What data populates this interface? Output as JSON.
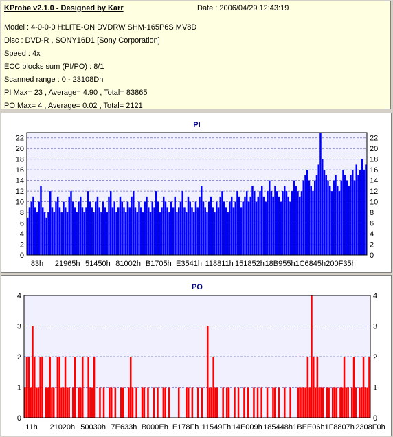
{
  "header": {
    "title": "KProbe v2.1.0 - Designed by Karr",
    "date": "Date : 2006/04/29 12:43:19",
    "model": "Model : 4-0-0-0 H:LITE-ON DVDRW SHM-165P6S MV8D",
    "disc": "Disc : DVD-R , SONY16D1 [Sony Corporation]",
    "speed": "Speed : 4x",
    "ecc": "ECC blocks sum (PI/PO) : 8/1",
    "range": "Scanned range : 0 - 23108Dh",
    "pi_stats": "PI Max= 23 , Average= 4.90 , Total= 83865",
    "po_stats": "PO Max= 4 , Average= 0.02 , Total= 2121"
  },
  "colors": {
    "pi_bars": "#0000ff",
    "po_bars": "#ff0000",
    "plot_bg": "#f0f0ff",
    "grid": "#7070c0",
    "title": "#000080"
  },
  "chart_data": [
    {
      "type": "bar",
      "title": "PI",
      "ylim": [
        0,
        23
      ],
      "yticks": [
        0,
        2,
        4,
        6,
        8,
        10,
        12,
        14,
        16,
        18,
        20,
        22
      ],
      "xticks": [
        "83h",
        "21965h",
        "51450h",
        "81002h",
        "B1705h",
        "E3541h",
        "118811h",
        "151852h",
        "18B955h",
        "1C6845h",
        "200F35h"
      ],
      "grid": true,
      "series": [
        {
          "color": "#0000ff",
          "values": [
            7,
            9,
            10,
            11,
            9,
            8,
            10,
            13,
            9,
            8,
            7,
            8,
            12,
            9,
            8,
            10,
            11,
            9,
            8,
            10,
            9,
            8,
            11,
            12,
            10,
            9,
            8,
            10,
            11,
            9,
            8,
            9,
            12,
            10,
            9,
            8,
            10,
            11,
            9,
            8,
            10,
            9,
            8,
            11,
            12,
            9,
            10,
            8,
            9,
            11,
            10,
            9,
            8,
            10,
            9,
            11,
            12,
            9,
            8,
            10,
            9,
            8,
            10,
            11,
            9,
            8,
            10,
            9,
            12,
            10,
            8,
            9,
            11,
            10,
            9,
            8,
            10,
            9,
            11,
            8,
            9,
            10,
            12,
            9,
            8,
            11,
            10,
            9,
            8,
            10,
            9,
            11,
            13,
            10,
            9,
            8,
            10,
            11,
            9,
            8,
            10,
            9,
            11,
            12,
            10,
            9,
            8,
            10,
            11,
            9,
            10,
            12,
            11,
            9,
            10,
            11,
            12,
            10,
            11,
            13,
            12,
            10,
            11,
            12,
            13,
            11,
            10,
            12,
            14,
            12,
            11,
            13,
            12,
            11,
            10,
            12,
            13,
            12,
            11,
            10,
            12,
            14,
            13,
            12,
            11,
            12,
            14,
            15,
            16,
            14,
            13,
            12,
            14,
            15,
            17,
            23,
            18,
            16,
            15,
            14,
            13,
            12,
            14,
            15,
            13,
            12,
            14,
            16,
            15,
            14,
            13,
            15,
            16,
            14,
            17,
            15,
            16,
            18,
            16,
            17
          ]
        }
      ]
    },
    {
      "type": "bar",
      "title": "PO",
      "ylim": [
        0,
        4
      ],
      "yticks": [
        0,
        1,
        2,
        3,
        4
      ],
      "xticks": [
        "11h",
        "21020h",
        "50030h",
        "7E633h",
        "B000Eh",
        "E178Fh",
        "11549Fh",
        "14E009h",
        "185448h",
        "1BEE06h",
        "1F8807h",
        "2308F0h"
      ],
      "grid": true,
      "series": [
        {
          "color": "#ff0000",
          "values": [
            1,
            2,
            2,
            1,
            3,
            2,
            1,
            1,
            2,
            2,
            0,
            1,
            1,
            2,
            1,
            1,
            0,
            2,
            2,
            1,
            1,
            2,
            1,
            1,
            0,
            1,
            2,
            0,
            1,
            1,
            2,
            0,
            0,
            2,
            1,
            1,
            2,
            0,
            0,
            1,
            0,
            1,
            0,
            0,
            1,
            1,
            0,
            1,
            0,
            0,
            1,
            1,
            0,
            0,
            1,
            2,
            1,
            0,
            1,
            0,
            0,
            1,
            1,
            0,
            1,
            0,
            0,
            1,
            0,
            1,
            0,
            0,
            1,
            1,
            0,
            1,
            0,
            0,
            0,
            0,
            1,
            0,
            0,
            0,
            1,
            1,
            0,
            1,
            0,
            0,
            1,
            0,
            1,
            0,
            0,
            3,
            1,
            1,
            2,
            1,
            1,
            0,
            0,
            1,
            0,
            1,
            1,
            0,
            0,
            1,
            0,
            1,
            0,
            0,
            1,
            0,
            1,
            0,
            0,
            1,
            0,
            1,
            0,
            1,
            0,
            0,
            1,
            0,
            0,
            1,
            1,
            0,
            1,
            0,
            0,
            1,
            0,
            0,
            1,
            0,
            0,
            0,
            1,
            1,
            1,
            1,
            1,
            2,
            1,
            4,
            2,
            1,
            2,
            1,
            1,
            1,
            0,
            1,
            1,
            0,
            1,
            1,
            1,
            0,
            1,
            1,
            2,
            1,
            1,
            0,
            1,
            2,
            1,
            0,
            1,
            1,
            2,
            1,
            1,
            2
          ]
        }
      ]
    }
  ]
}
